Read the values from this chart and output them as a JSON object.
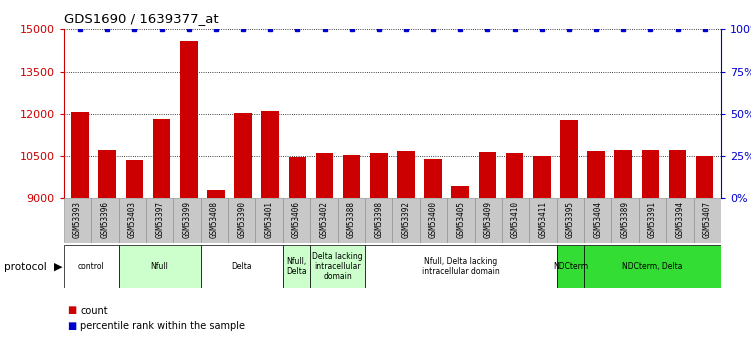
{
  "title": "GDS1690 / 1639377_at",
  "samples": [
    "GSM53393",
    "GSM53396",
    "GSM53403",
    "GSM53397",
    "GSM53399",
    "GSM53408",
    "GSM53390",
    "GSM53401",
    "GSM53406",
    "GSM53402",
    "GSM53388",
    "GSM53398",
    "GSM53392",
    "GSM53400",
    "GSM53405",
    "GSM53409",
    "GSM53410",
    "GSM53411",
    "GSM53395",
    "GSM53404",
    "GSM53389",
    "GSM53391",
    "GSM53394",
    "GSM53407"
  ],
  "counts": [
    12050,
    10700,
    10350,
    11800,
    14600,
    9300,
    12020,
    12100,
    10480,
    10600,
    10530,
    10600,
    10680,
    10380,
    9450,
    10640,
    10620,
    10500,
    11780,
    10680,
    10720,
    10720,
    10700,
    10500
  ],
  "percentile_ranks": [
    100,
    100,
    100,
    100,
    100,
    100,
    100,
    100,
    100,
    100,
    100,
    100,
    100,
    100,
    100,
    100,
    100,
    100,
    100,
    100,
    100,
    100,
    100,
    100
  ],
  "ylim": [
    9000,
    15000
  ],
  "yticks": [
    9000,
    10500,
    12000,
    13500,
    15000
  ],
  "y2ticks": [
    0,
    25,
    50,
    75,
    100
  ],
  "y2lim": [
    0,
    100
  ],
  "bar_color": "#cc0000",
  "dot_color": "#0000cc",
  "protocols": [
    {
      "label": "control",
      "start": 0,
      "end": 2,
      "color": "#ffffff"
    },
    {
      "label": "Nfull",
      "start": 2,
      "end": 5,
      "color": "#ccffcc"
    },
    {
      "label": "Delta",
      "start": 5,
      "end": 8,
      "color": "#ffffff"
    },
    {
      "label": "Nfull,\nDelta",
      "start": 8,
      "end": 9,
      "color": "#ccffcc"
    },
    {
      "label": "Delta lacking\nintracellular\ndomain",
      "start": 9,
      "end": 11,
      "color": "#ccffcc"
    },
    {
      "label": "Nfull, Delta lacking\nintracellular domain",
      "start": 11,
      "end": 18,
      "color": "#ffffff"
    },
    {
      "label": "NDCterm",
      "start": 18,
      "end": 19,
      "color": "#33dd33"
    },
    {
      "label": "NDCterm, Delta",
      "start": 19,
      "end": 24,
      "color": "#33dd33"
    }
  ],
  "tick_bg_color": "#c8c8c8",
  "tick_border_color": "#888888"
}
